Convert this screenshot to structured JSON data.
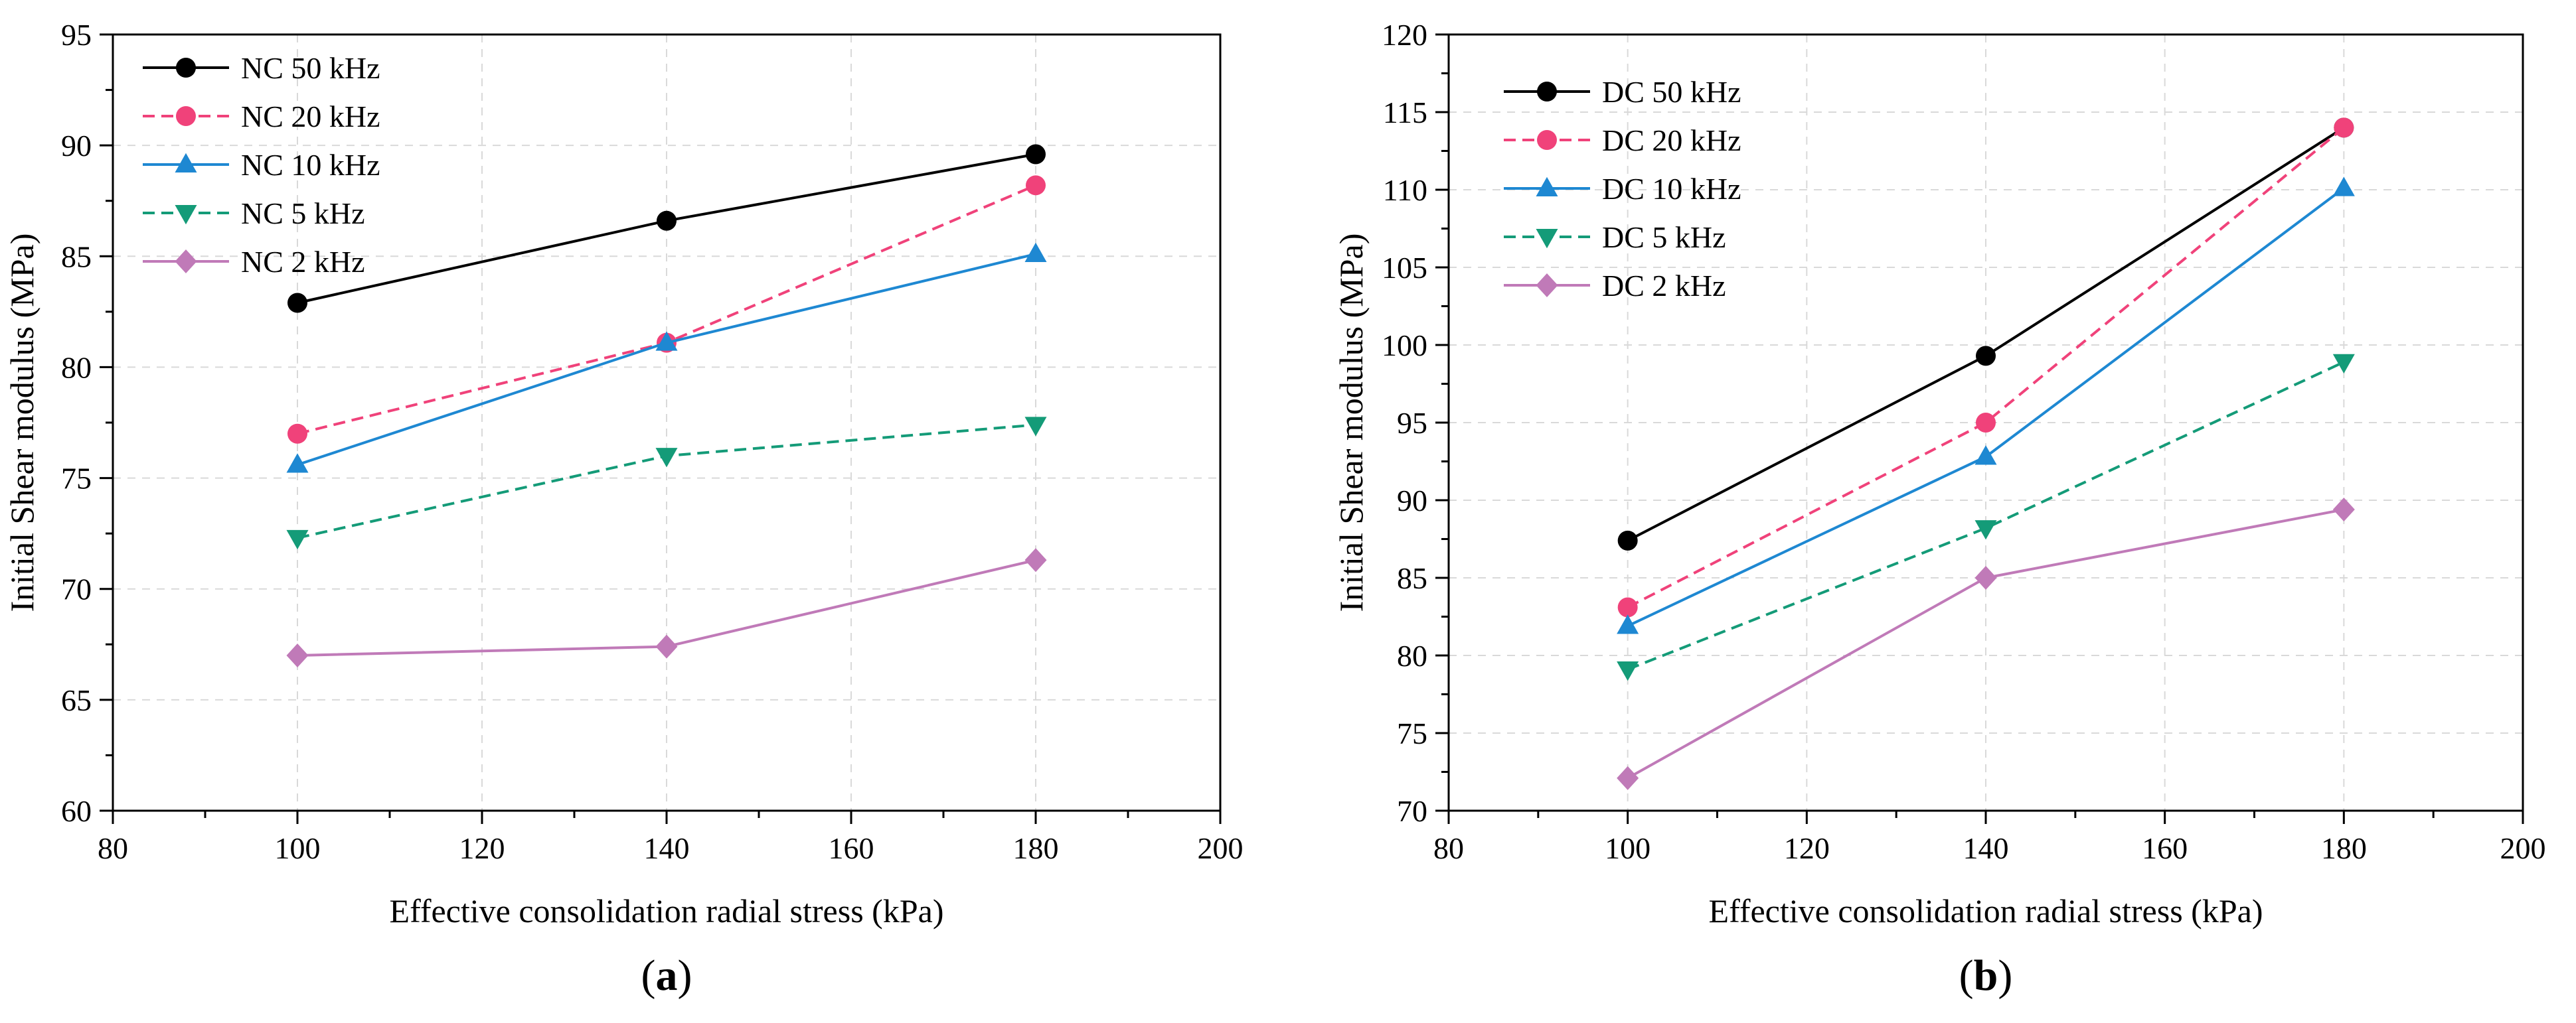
{
  "chart_data": [
    {
      "type": "line",
      "panel": "(a)",
      "panel_letter": "a",
      "xlabel": "Effective consolidation radial stress (kPa)",
      "ylabel": "Initial Shear modulus (MPa)",
      "xlim": [
        80,
        200
      ],
      "ylim": [
        60,
        95
      ],
      "xticks": [
        80,
        100,
        120,
        140,
        160,
        180,
        200
      ],
      "yticks": [
        60,
        65,
        70,
        75,
        80,
        85,
        90,
        95
      ],
      "x": [
        100,
        140,
        180
      ],
      "legend_position": "top-left",
      "series": [
        {
          "name": "NC 50 kHz",
          "color": "#000000",
          "dash": "solid",
          "marker": "circle",
          "values": [
            82.9,
            86.6,
            89.6
          ]
        },
        {
          "name": "NC 20 kHz",
          "color": "#f0427a",
          "dash": "dashed",
          "marker": "circle",
          "values": [
            77.0,
            81.1,
            88.2
          ]
        },
        {
          "name": "NC 10 kHz",
          "color": "#1e88d2",
          "dash": "solid",
          "marker": "triangle-up",
          "values": [
            75.6,
            81.1,
            85.1
          ]
        },
        {
          "name": "NC 5 kHz",
          "color": "#149b78",
          "dash": "dashed",
          "marker": "triangle-down",
          "values": [
            72.3,
            76.0,
            77.4
          ]
        },
        {
          "name": "NC 2 kHz",
          "color": "#c07ab8",
          "dash": "solid",
          "marker": "diamond",
          "values": [
            67.0,
            67.4,
            71.3
          ]
        }
      ]
    },
    {
      "type": "line",
      "panel": "(b)",
      "panel_letter": "b",
      "xlabel": "Effective consolidation radial stress (kPa)",
      "ylabel": "Initial Shear modulus (MPa)",
      "xlim": [
        80,
        200
      ],
      "ylim": [
        70,
        120
      ],
      "xticks": [
        80,
        100,
        120,
        140,
        160,
        180,
        200
      ],
      "yticks": [
        70,
        75,
        80,
        85,
        90,
        95,
        100,
        105,
        110,
        115,
        120
      ],
      "x": [
        100,
        140,
        180
      ],
      "legend_position": "top-left",
      "series": [
        {
          "name": "DC 50 kHz",
          "color": "#000000",
          "dash": "solid",
          "marker": "circle",
          "values": [
            87.4,
            99.3,
            114.0
          ]
        },
        {
          "name": "DC 20 kHz",
          "color": "#f0427a",
          "dash": "dashed",
          "marker": "circle",
          "values": [
            83.1,
            95.0,
            114.0
          ]
        },
        {
          "name": "DC 10 kHz",
          "color": "#1e88d2",
          "dash": "solid",
          "marker": "triangle-up",
          "values": [
            81.9,
            92.8,
            110.1
          ]
        },
        {
          "name": "DC 5 kHz",
          "color": "#149b78",
          "dash": "dashed",
          "marker": "triangle-down",
          "values": [
            79.1,
            88.2,
            98.9
          ]
        },
        {
          "name": "DC 2 kHz",
          "color": "#c07ab8",
          "dash": "solid",
          "marker": "diamond",
          "values": [
            72.1,
            85.0,
            89.4
          ]
        }
      ]
    }
  ]
}
